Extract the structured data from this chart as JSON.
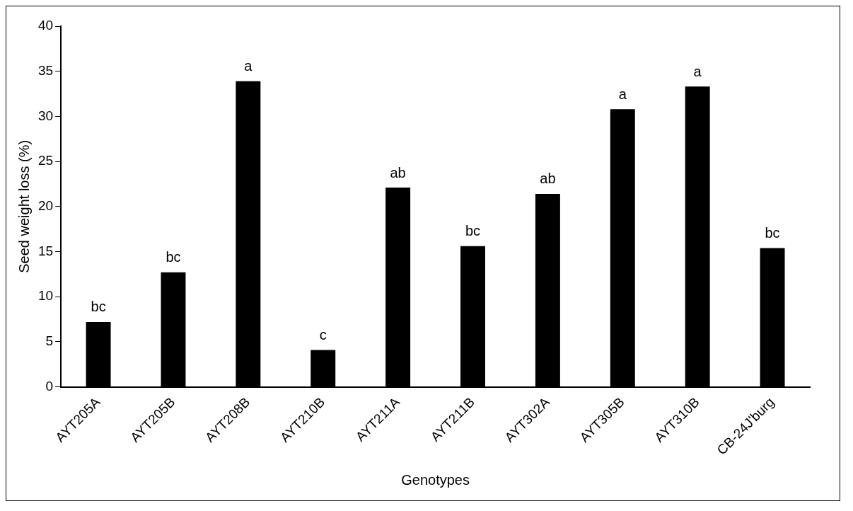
{
  "chart_data": {
    "type": "bar",
    "xlabel": "Genotypes",
    "ylabel": "Seed weight loss (%)",
    "categories": [
      "AYT205A",
      "AYT205B",
      "AYT208B",
      "AYT210B",
      "AYT211A",
      "AYT211B",
      "AYT302A",
      "AYT305B",
      "AYT310B",
      "CB-24J'burg"
    ],
    "values": [
      7.2,
      12.7,
      33.9,
      4.1,
      22.1,
      15.6,
      21.4,
      30.8,
      33.3,
      15.4
    ],
    "color": "#000000",
    "ylim": [
      0,
      40
    ],
    "yticks": [
      0,
      5,
      10,
      15,
      20,
      25,
      30,
      35,
      40
    ],
    "grid": false,
    "legend": false,
    "annotations": [
      {
        "text": "bc",
        "x": "AYT205A",
        "y": 7.2
      },
      {
        "text": "bc",
        "x": "AYT205B",
        "y": 12.7
      },
      {
        "text": "a",
        "x": "AYT208B",
        "y": 33.9
      },
      {
        "text": "c",
        "x": "AYT210B",
        "y": 4.1
      },
      {
        "text": "ab",
        "x": "AYT211A",
        "y": 22.1
      },
      {
        "text": "bc",
        "x": "AYT211B",
        "y": 15.6
      },
      {
        "text": "ab",
        "x": "AYT302A",
        "y": 21.4
      },
      {
        "text": "a",
        "x": "AYT305B",
        "y": 30.8
      },
      {
        "text": "a",
        "x": "AYT310B",
        "y": 33.3
      },
      {
        "text": "bc",
        "x": "CB-24J'burg",
        "y": 15.4
      }
    ]
  }
}
